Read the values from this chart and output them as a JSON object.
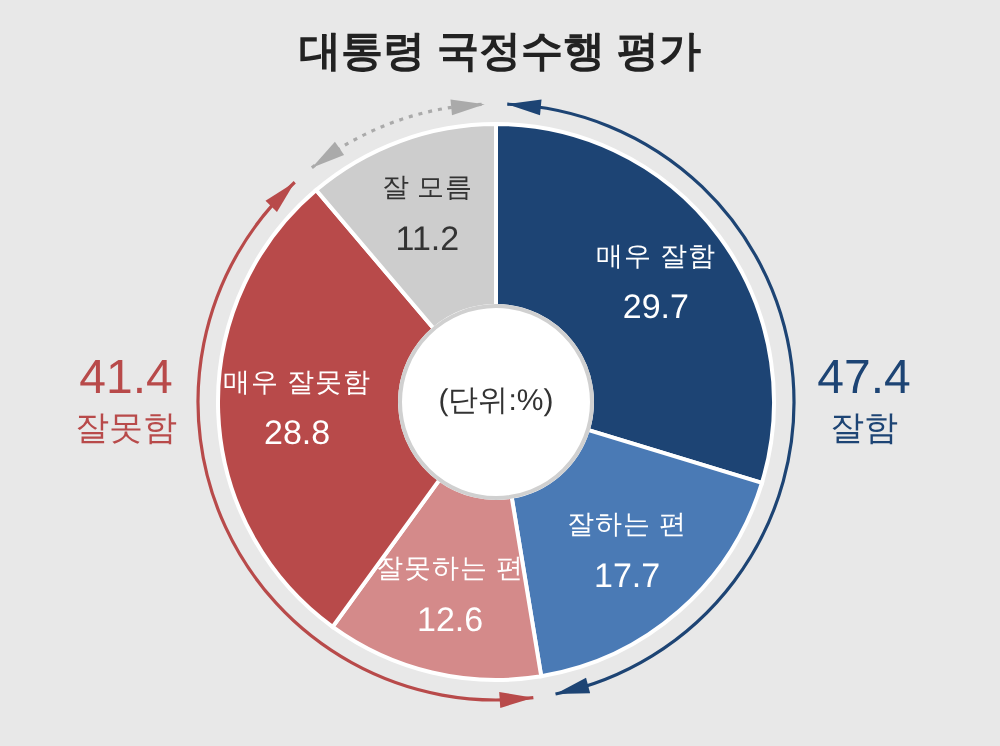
{
  "chart_data": {
    "type": "donut",
    "title": "대통령 국정수행 평가",
    "categories": [
      "매우 잘함",
      "잘하는 편",
      "잘못하는 편",
      "매우 잘못함",
      "잘 모름"
    ],
    "values": [
      29.7,
      17.7,
      12.6,
      28.8,
      11.2
    ],
    "colors": [
      "#1d4474",
      "#4a7ab5",
      "#d48a8a",
      "#b84a4a",
      "#cdcdcd"
    ],
    "data_labels": true,
    "annotations": [
      "(단위:%)",
      "47.4",
      "잘함",
      "41.4",
      "잘못함"
    ]
  }
}
